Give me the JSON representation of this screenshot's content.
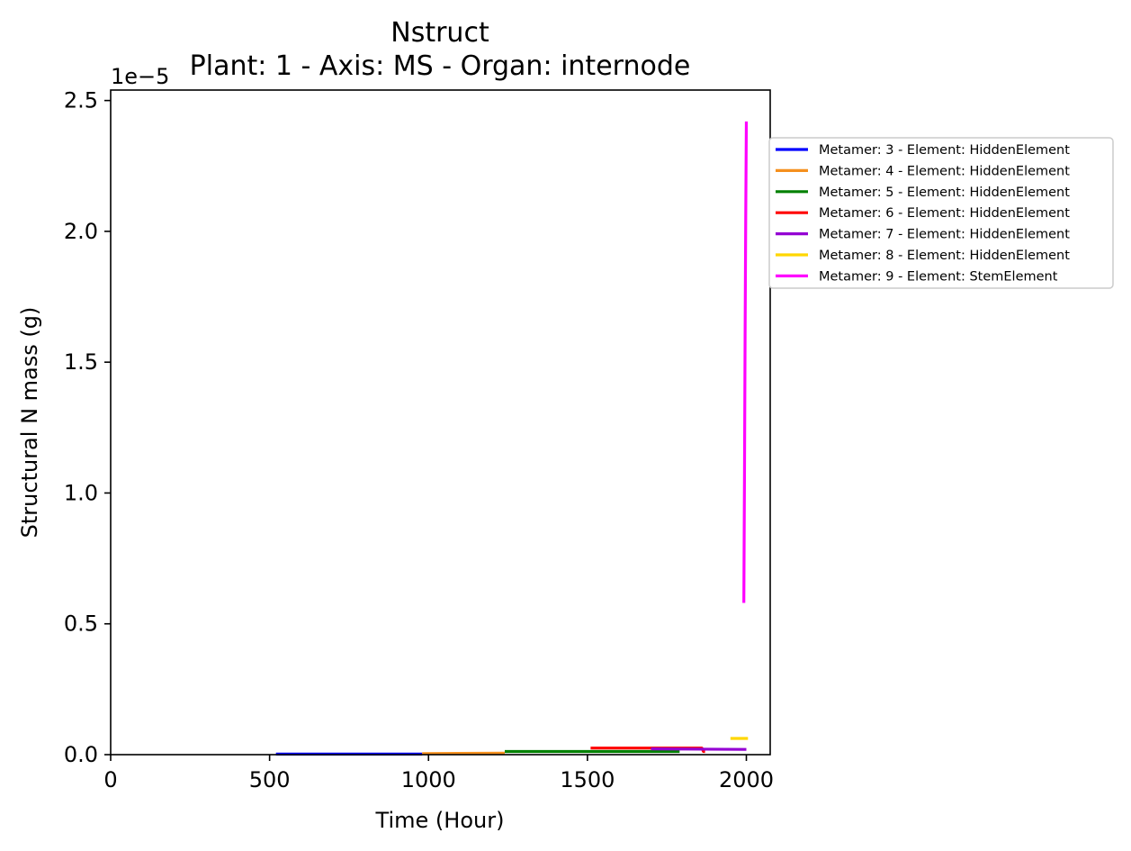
{
  "chart_data": {
    "type": "line",
    "title": "Nstruct",
    "subtitle": "Plant: 1 - Axis: MS - Organ: internode",
    "xlabel": "Time (Hour)",
    "ylabel": "Structural N mass (g)",
    "y_offset_label": "1e−5",
    "xlim": [
      0,
      2075
    ],
    "ylim": [
      0,
      2.54
    ],
    "x_ticks": [
      0,
      500,
      1000,
      1500,
      2000
    ],
    "x_tick_labels": [
      "0",
      "500",
      "1000",
      "1500",
      "2000"
    ],
    "y_ticks": [
      0.0,
      0.5,
      1.0,
      1.5,
      2.0,
      2.5
    ],
    "y_tick_labels": [
      "0.0",
      "0.5",
      "1.0",
      "1.5",
      "2.0",
      "2.5"
    ],
    "grid": false,
    "legend_position": "outside-right-top",
    "series": [
      {
        "name": "Metamer: 3 - Element: HiddenElement",
        "color": "#0000ff",
        "x": [
          520,
          980
        ],
        "y": [
          0.002,
          0.002
        ]
      },
      {
        "name": "Metamer: 4 - Element: HiddenElement",
        "color": "#f5901e",
        "x": [
          980,
          1240
        ],
        "y": [
          0.004,
          0.006
        ]
      },
      {
        "name": "Metamer: 5 - Element: HiddenElement",
        "color": "#008000",
        "x": [
          1240,
          1790
        ],
        "y": [
          0.012,
          0.012
        ]
      },
      {
        "name": "Metamer: 6 - Element: HiddenElement",
        "color": "#ff0000",
        "x": [
          1510,
          1860,
          1865,
          1870
        ],
        "y": [
          0.025,
          0.025,
          0.012,
          0.012
        ]
      },
      {
        "name": "Metamer: 7 - Element: HiddenElement",
        "color": "#9400d3",
        "x": [
          1700,
          2000
        ],
        "y": [
          0.022,
          0.02
        ]
      },
      {
        "name": "Metamer: 8 - Element: HiddenElement",
        "color": "#ffd700",
        "x": [
          1950,
          2005
        ],
        "y": [
          0.062,
          0.062
        ]
      },
      {
        "name": "Metamer: 9 - Element: StemElement",
        "color": "#ff00ff",
        "x": [
          1992,
          1994,
          1996,
          1998,
          2000
        ],
        "y": [
          0.58,
          1.05,
          1.6,
          2.05,
          2.42
        ]
      }
    ]
  }
}
